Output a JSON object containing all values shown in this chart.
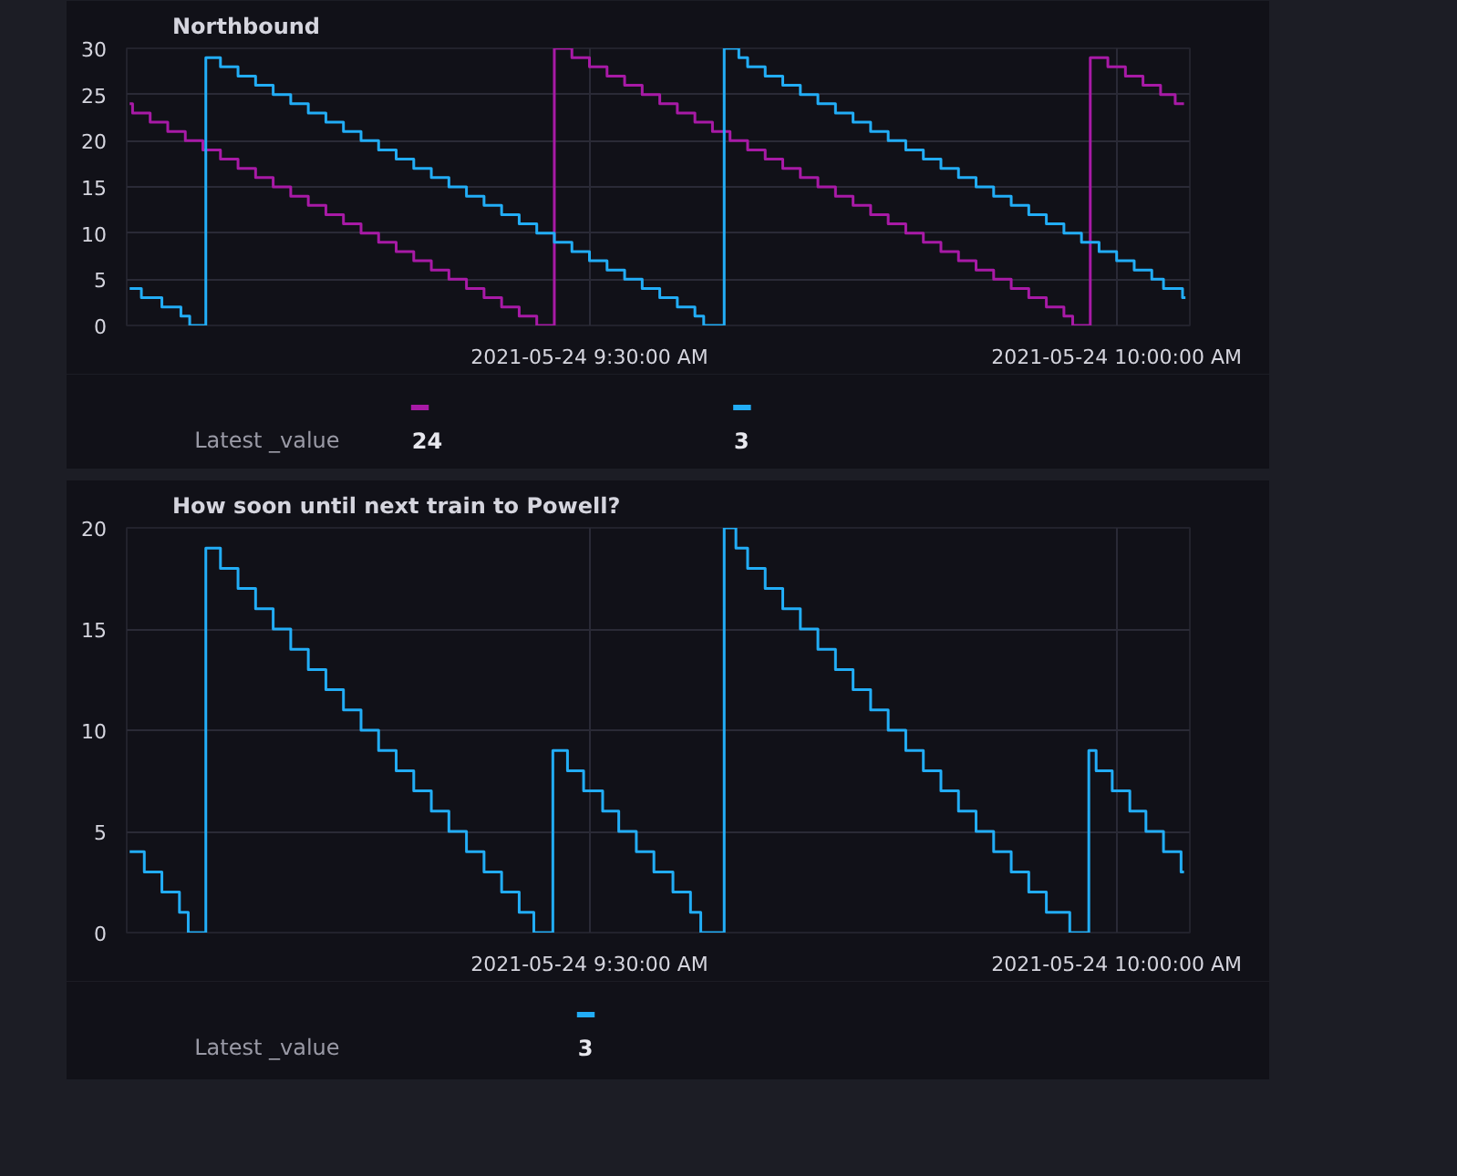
{
  "chart_data": [
    {
      "type": "step",
      "title": "Northbound",
      "xlim": [
        "2021-05-24T09:03:40",
        "2021-05-24T10:04:10"
      ],
      "ylim": [
        0,
        30
      ],
      "yticks": [
        0,
        5,
        10,
        15,
        20,
        25,
        30
      ],
      "xticks": [
        {
          "value": "2021-05-24T09:30",
          "label": "2021-05-24 9:30:00 AM"
        },
        {
          "value": "2021-05-24T10:00",
          "label": "2021-05-24 10:00:00 AM"
        }
      ],
      "grid": true,
      "annotations": [
        "Latest _value",
        "24",
        "3"
      ],
      "series": [
        {
          "color": "#a81aa6",
          "x": [
            "2021-05-24T09:03:50",
            "2021-05-24T09:04",
            "2021-05-24T09:05",
            "2021-05-24T09:06",
            "2021-05-24T09:07",
            "2021-05-24T09:08",
            "2021-05-24T09:09",
            "2021-05-24T09:10",
            "2021-05-24T09:11",
            "2021-05-24T09:12",
            "2021-05-24T09:13",
            "2021-05-24T09:14",
            "2021-05-24T09:15",
            "2021-05-24T09:16",
            "2021-05-24T09:17",
            "2021-05-24T09:18",
            "2021-05-24T09:19",
            "2021-05-24T09:20",
            "2021-05-24T09:21",
            "2021-05-24T09:22",
            "2021-05-24T09:23",
            "2021-05-24T09:24",
            "2021-05-24T09:25",
            "2021-05-24T09:26",
            "2021-05-24T09:27",
            "2021-05-24T09:28",
            "2021-05-24T09:29",
            "2021-05-24T09:30",
            "2021-05-24T09:31",
            "2021-05-24T09:32",
            "2021-05-24T09:33",
            "2021-05-24T09:34",
            "2021-05-24T09:35",
            "2021-05-24T09:36",
            "2021-05-24T09:37",
            "2021-05-24T09:38",
            "2021-05-24T09:39",
            "2021-05-24T09:40",
            "2021-05-24T09:41",
            "2021-05-24T09:42",
            "2021-05-24T09:43",
            "2021-05-24T09:44",
            "2021-05-24T09:45",
            "2021-05-24T09:46",
            "2021-05-24T09:47",
            "2021-05-24T09:48",
            "2021-05-24T09:49",
            "2021-05-24T09:50",
            "2021-05-24T09:51",
            "2021-05-24T09:52",
            "2021-05-24T09:53",
            "2021-05-24T09:54",
            "2021-05-24T09:55",
            "2021-05-24T09:56",
            "2021-05-24T09:57",
            "2021-05-24T09:57:30",
            "2021-05-24T09:58:30",
            "2021-05-24T09:59:30",
            "2021-05-24T10:00:30",
            "2021-05-24T10:01:30",
            "2021-05-24T10:02:30",
            "2021-05-24T10:03:20",
            "2021-05-24T10:03:50"
          ],
          "values": [
            24,
            23,
            22,
            21,
            20,
            19,
            18,
            17,
            16,
            15,
            14,
            13,
            12,
            11,
            10,
            9,
            8,
            7,
            6,
            5,
            4,
            3,
            2,
            1,
            0,
            30,
            29,
            28,
            27,
            26,
            25,
            24,
            23,
            22,
            21,
            20,
            19,
            18,
            17,
            16,
            15,
            14,
            13,
            12,
            11,
            10,
            9,
            8,
            7,
            6,
            5,
            4,
            3,
            2,
            1,
            0,
            29,
            28,
            27,
            26,
            25,
            24,
            24
          ]
        },
        {
          "color": "#22adf6",
          "x": [
            "2021-05-24T09:03:50",
            "2021-05-24T09:04:30",
            "2021-05-24T09:05:40",
            "2021-05-24T09:06:45",
            "2021-05-24T09:07:15",
            "2021-05-24T09:08:10",
            "2021-05-24T09:09",
            "2021-05-24T09:10",
            "2021-05-24T09:11",
            "2021-05-24T09:12",
            "2021-05-24T09:13",
            "2021-05-24T09:14",
            "2021-05-24T09:15",
            "2021-05-24T09:16",
            "2021-05-24T09:17",
            "2021-05-24T09:18",
            "2021-05-24T09:19",
            "2021-05-24T09:20",
            "2021-05-24T09:21",
            "2021-05-24T09:22",
            "2021-05-24T09:23",
            "2021-05-24T09:24",
            "2021-05-24T09:25",
            "2021-05-24T09:26",
            "2021-05-24T09:27",
            "2021-05-24T09:28",
            "2021-05-24T09:29",
            "2021-05-24T09:30",
            "2021-05-24T09:31",
            "2021-05-24T09:32",
            "2021-05-24T09:33",
            "2021-05-24T09:34",
            "2021-05-24T09:35",
            "2021-05-24T09:36",
            "2021-05-24T09:36:30",
            "2021-05-24T09:37:40",
            "2021-05-24T09:38:30",
            "2021-05-24T09:39",
            "2021-05-24T09:40",
            "2021-05-24T09:41",
            "2021-05-24T09:42",
            "2021-05-24T09:43",
            "2021-05-24T09:44",
            "2021-05-24T09:45",
            "2021-05-24T09:46",
            "2021-05-24T09:47",
            "2021-05-24T09:48",
            "2021-05-24T09:49",
            "2021-05-24T09:50",
            "2021-05-24T09:51",
            "2021-05-24T09:52",
            "2021-05-24T09:53",
            "2021-05-24T09:54",
            "2021-05-24T09:55",
            "2021-05-24T09:56",
            "2021-05-24T09:57",
            "2021-05-24T09:58",
            "2021-05-24T09:59",
            "2021-05-24T10:00",
            "2021-05-24T10:01",
            "2021-05-24T10:02",
            "2021-05-24T10:02:40",
            "2021-05-24T10:03:45",
            "2021-05-24T10:03:55"
          ],
          "values": [
            4,
            3,
            2,
            1,
            0,
            29,
            28,
            27,
            26,
            25,
            24,
            23,
            22,
            21,
            20,
            19,
            18,
            17,
            16,
            15,
            14,
            13,
            12,
            11,
            10,
            9,
            8,
            7,
            6,
            5,
            4,
            3,
            2,
            1,
            0,
            30,
            29,
            28,
            27,
            26,
            25,
            24,
            23,
            22,
            21,
            20,
            19,
            18,
            17,
            16,
            15,
            14,
            13,
            12,
            11,
            10,
            9,
            8,
            7,
            6,
            5,
            4,
            3,
            3
          ]
        }
      ]
    },
    {
      "type": "step",
      "title": "How soon until next train to Powell?",
      "xlim": [
        "2021-05-24T09:03:40",
        "2021-05-24T10:04:10"
      ],
      "ylim": [
        0,
        20
      ],
      "yticks": [
        0,
        5,
        10,
        15,
        20
      ],
      "xticks": [
        {
          "value": "2021-05-24T09:30",
          "label": "2021-05-24 9:30:00 AM"
        },
        {
          "value": "2021-05-24T10:00",
          "label": "2021-05-24 10:00:00 AM"
        }
      ],
      "grid": true,
      "annotations": [
        "Latest _value",
        "3"
      ],
      "series": [
        {
          "color": "#22adf6",
          "x": [
            "2021-05-24T09:03:50",
            "2021-05-24T09:04:40",
            "2021-05-24T09:05:40",
            "2021-05-24T09:06:40",
            "2021-05-24T09:07:10",
            "2021-05-24T09:08:10",
            "2021-05-24T09:09",
            "2021-05-24T09:10",
            "2021-05-24T09:11",
            "2021-05-24T09:12",
            "2021-05-24T09:13",
            "2021-05-24T09:14",
            "2021-05-24T09:15",
            "2021-05-24T09:16",
            "2021-05-24T09:17",
            "2021-05-24T09:18",
            "2021-05-24T09:19",
            "2021-05-24T09:20",
            "2021-05-24T09:21",
            "2021-05-24T09:22",
            "2021-05-24T09:23",
            "2021-05-24T09:24",
            "2021-05-24T09:25",
            "2021-05-24T09:26",
            "2021-05-24T09:26:50",
            "2021-05-24T09:27:55",
            "2021-05-24T09:28:45",
            "2021-05-24T09:29:40",
            "2021-05-24T09:30:45",
            "2021-05-24T09:31:40",
            "2021-05-24T09:32:40",
            "2021-05-24T09:33:40",
            "2021-05-24T09:34:45",
            "2021-05-24T09:35:45",
            "2021-05-24T09:36:20",
            "2021-05-24T09:37:40",
            "2021-05-24T09:38:20",
            "2021-05-24T09:39",
            "2021-05-24T09:40",
            "2021-05-24T09:41",
            "2021-05-24T09:42",
            "2021-05-24T09:43",
            "2021-05-24T09:44",
            "2021-05-24T09:45",
            "2021-05-24T09:46",
            "2021-05-24T09:47",
            "2021-05-24T09:48",
            "2021-05-24T09:49",
            "2021-05-24T09:50",
            "2021-05-24T09:51",
            "2021-05-24T09:52",
            "2021-05-24T09:53",
            "2021-05-24T09:54",
            "2021-05-24T09:55",
            "2021-05-24T09:56",
            "2021-05-24T09:57:20",
            "2021-05-24T09:58:25",
            "2021-05-24T09:58:50",
            "2021-05-24T09:59:45",
            "2021-05-24T10:00:45",
            "2021-05-24T10:01:40",
            "2021-05-24T10:02:40",
            "2021-05-24T10:03:40",
            "2021-05-24T10:03:50"
          ],
          "values": [
            4,
            3,
            2,
            1,
            0,
            19,
            18,
            17,
            16,
            15,
            14,
            13,
            12,
            11,
            10,
            9,
            8,
            7,
            6,
            5,
            4,
            3,
            2,
            1,
            0,
            9,
            8,
            7,
            6,
            5,
            4,
            3,
            2,
            1,
            0,
            20,
            19,
            18,
            17,
            16,
            15,
            14,
            13,
            12,
            11,
            10,
            9,
            8,
            7,
            6,
            5,
            4,
            3,
            2,
            1,
            0,
            9,
            8,
            7,
            6,
            5,
            4,
            3,
            3
          ]
        }
      ]
    }
  ]
}
